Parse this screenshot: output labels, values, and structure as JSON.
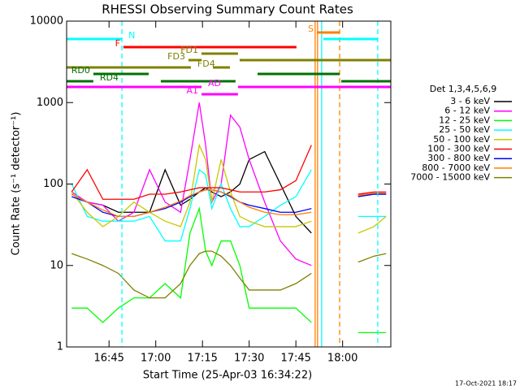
{
  "chart_data": {
    "type": "line",
    "title": "RHESSI Observing Summary Count Rates",
    "x_label": "Start Time (25-Apr-03 16:34:22)",
    "y_label": "Count Rate (s⁻¹ detector⁻¹)",
    "footer": "17-Oct-2021 18:17",
    "legend_title": "Det 1,3,4,5,6,9",
    "legend": "right",
    "log_y": true,
    "xlim": [
      16.523,
      18.258
    ],
    "xticks": [
      {
        "value": 16.75,
        "label": "16:45"
      },
      {
        "value": 17.0,
        "label": "17:00"
      },
      {
        "value": 17.25,
        "label": "17:15"
      },
      {
        "value": 17.5,
        "label": "17:30"
      },
      {
        "value": 17.75,
        "label": "17:45"
      },
      {
        "value": 18.0,
        "label": "18:00"
      }
    ],
    "ylim": [
      1,
      10000
    ],
    "yticks": [
      1,
      10,
      100,
      1000,
      10000
    ],
    "x": [
      16.55,
      16.633,
      16.717,
      16.8,
      16.883,
      16.967,
      17.05,
      17.133,
      17.183,
      17.233,
      17.267,
      17.3,
      17.35,
      17.4,
      17.45,
      17.5,
      17.583,
      17.667,
      17.75,
      17.833,
      17.917,
      18.0,
      18.083,
      18.167,
      18.233
    ],
    "series": [
      {
        "name": "3 - 6 keV",
        "color": "#000000",
        "values": [
          75,
          60,
          55,
          45,
          45,
          45,
          150,
          55,
          65,
          80,
          90,
          80,
          70,
          80,
          100,
          200,
          250,
          100,
          40,
          25,
          null,
          null,
          70,
          75,
          75
        ]
      },
      {
        "name": "6 - 12 keV",
        "color": "#ff00ff",
        "values": [
          80,
          60,
          55,
          35,
          45,
          150,
          60,
          45,
          200,
          1000,
          300,
          60,
          100,
          700,
          500,
          200,
          60,
          20,
          12,
          10,
          null,
          null,
          75,
          75,
          75
        ]
      },
      {
        "name": "12 - 25 keV",
        "color": "#00ff00",
        "values": [
          3,
          3,
          2,
          3,
          4,
          4,
          6,
          4,
          25,
          50,
          15,
          10,
          20,
          20,
          10,
          3,
          3,
          3,
          3,
          2,
          null,
          null,
          1.5,
          1.5,
          1.5
        ]
      },
      {
        "name": "25 - 50 keV",
        "color": "#00ffff",
        "values": [
          100,
          40,
          35,
          35,
          35,
          40,
          20,
          20,
          50,
          150,
          130,
          50,
          100,
          50,
          30,
          30,
          40,
          55,
          70,
          150,
          null,
          null,
          40,
          40,
          40
        ]
      },
      {
        "name": "50 - 100 keV",
        "color": "#c8c800",
        "values": [
          80,
          45,
          30,
          40,
          60,
          45,
          35,
          30,
          60,
          300,
          200,
          60,
          200,
          80,
          40,
          35,
          30,
          30,
          30,
          35,
          null,
          null,
          25,
          30,
          40
        ]
      },
      {
        "name": "100 - 300 keV",
        "color": "#ff0000",
        "values": [
          80,
          150,
          65,
          65,
          65,
          75,
          75,
          80,
          85,
          90,
          90,
          90,
          90,
          85,
          80,
          80,
          80,
          85,
          110,
          300,
          null,
          null,
          75,
          80,
          80
        ]
      },
      {
        "name": "300 - 800 keV",
        "color": "#0000ff",
        "values": [
          70,
          60,
          45,
          40,
          40,
          45,
          50,
          60,
          70,
          80,
          85,
          85,
          80,
          70,
          60,
          55,
          50,
          45,
          45,
          50,
          null,
          null,
          70,
          75,
          75
        ]
      },
      {
        "name": "800 - 7000 keV",
        "color": "#ff8000",
        "values": [
          75,
          60,
          48,
          40,
          40,
          45,
          52,
          62,
          72,
          80,
          85,
          85,
          80,
          72,
          60,
          52,
          45,
          42,
          42,
          45,
          null,
          null,
          72,
          78,
          78
        ]
      },
      {
        "name": "7000 - 15000 keV",
        "color": "#808000",
        "values": [
          14,
          12,
          10,
          8,
          5,
          4,
          4,
          6,
          10,
          14,
          15,
          15,
          13,
          10,
          7,
          5,
          5,
          5,
          6,
          8,
          null,
          null,
          11,
          13,
          14
        ]
      }
    ],
    "flags": [
      {
        "label": "S",
        "color": "#ff8000",
        "segments": [
          [
            17.862,
            17.984
          ]
        ]
      },
      {
        "label": "N",
        "color": "#00ffff",
        "segments": [
          [
            16.523,
            16.819
          ],
          [
            17.897,
            18.188
          ]
        ]
      },
      {
        "label": "F",
        "color": "#ff0000",
        "segments": [
          [
            16.827,
            17.753
          ]
        ]
      },
      {
        "label": "FD1",
        "color": "#808000",
        "segments": [
          [
            17.245,
            17.44
          ]
        ]
      },
      {
        "label": "FD3",
        "color": "#808000",
        "segments": [
          [
            17.175,
            17.245
          ],
          [
            17.449,
            18.258
          ]
        ]
      },
      {
        "label": "FD4",
        "color": "#808000",
        "segments": [
          [
            16.523,
            17.188
          ],
          [
            17.306,
            17.397
          ]
        ]
      },
      {
        "label": "RD0",
        "color": "#007000",
        "segments": [
          [
            16.666,
            16.962
          ],
          [
            17.545,
            17.984
          ]
        ]
      },
      {
        "label": "RD4",
        "color": "#007000",
        "segments": [
          [
            16.523,
            16.666
          ],
          [
            17.027,
            17.427
          ],
          [
            17.993,
            18.258
          ]
        ]
      },
      {
        "label": "AD",
        "color": "#ff00ff",
        "segments": [
          [
            16.523,
            17.245
          ],
          [
            17.44,
            18.258
          ]
        ]
      },
      {
        "label": "A1",
        "color": "#ff00ff",
        "segments": [
          [
            17.245,
            17.44
          ]
        ]
      }
    ],
    "vlines": [
      {
        "x": 16.819,
        "color": "#00ffff",
        "dashed": true
      },
      {
        "x": 17.853,
        "color": "#ff8000",
        "dashed": false
      },
      {
        "x": 17.866,
        "color": "#ff8000",
        "dashed": false
      },
      {
        "x": 17.888,
        "color": "#00ffff",
        "dashed": false
      },
      {
        "x": 17.984,
        "color": "#ff8000",
        "dashed": true
      },
      {
        "x": 18.188,
        "color": "#00ffff",
        "dashed": true
      }
    ]
  }
}
